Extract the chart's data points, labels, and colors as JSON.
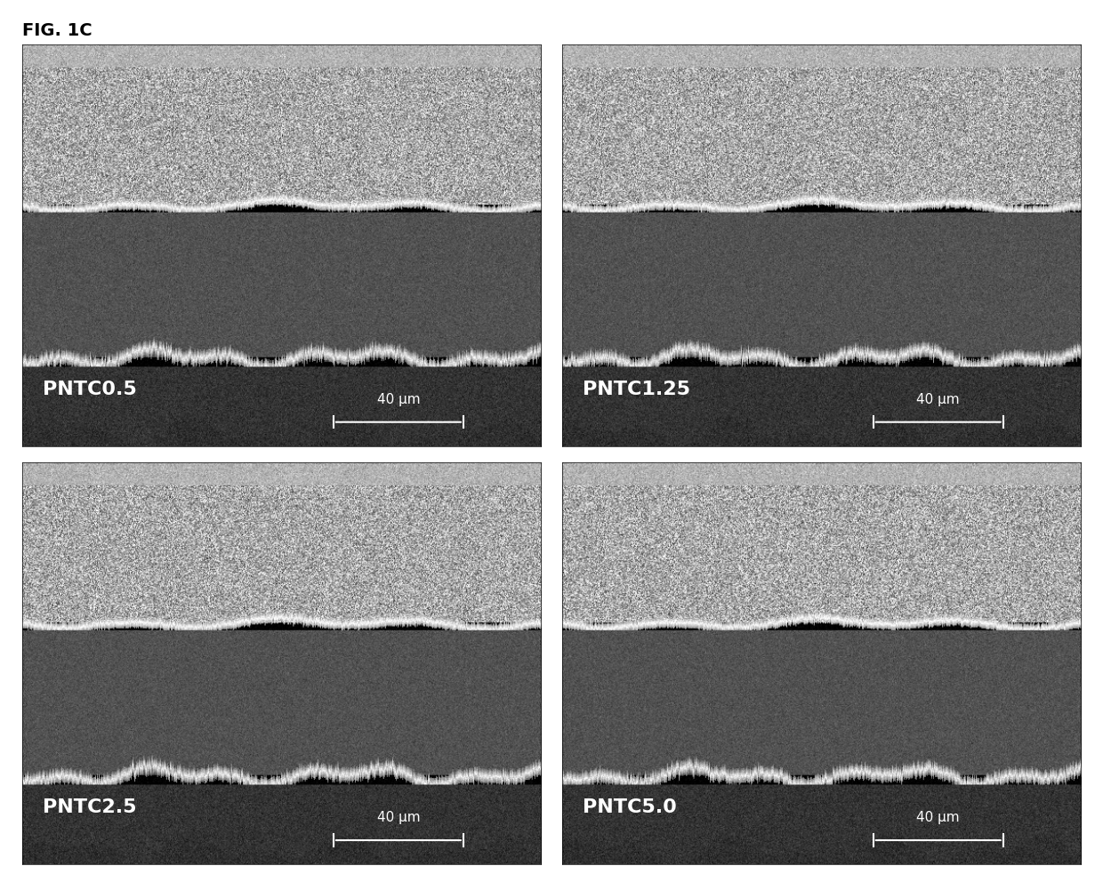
{
  "title": "FIG. 1C",
  "title_fontsize": 14,
  "title_fontweight": "bold",
  "labels": [
    "PNTC0.5",
    "PNTC1.25",
    "PNTC2.5",
    "PNTC5.0"
  ],
  "scale_bar_text": "40 μm",
  "background_color": "#ffffff",
  "label_fontsize": 16,
  "label_fontweight": "bold",
  "scalebar_fontsize": 11,
  "image_bg": "#888888",
  "nrows": 2,
  "ncols": 2,
  "fig_width": 12.4,
  "fig_height": 9.92,
  "dpi": 100
}
